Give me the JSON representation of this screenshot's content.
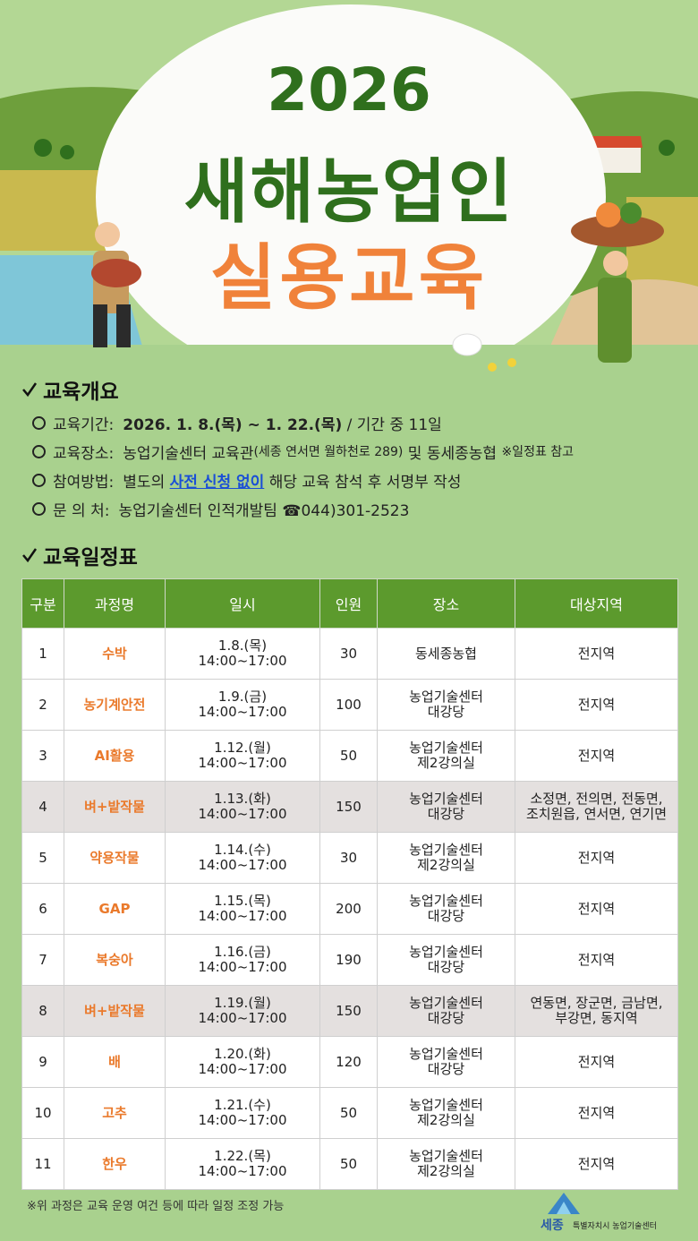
{
  "header": {
    "year": "2026",
    "title_line1": "새해농업인",
    "title_line2": "실용교육"
  },
  "overview": {
    "heading": "교육개요",
    "items": [
      {
        "label": "교육기간:",
        "parts": [
          "2026. 1. 8.(목) ~ 1. 22.(목)",
          " / 기간 중 11일"
        ]
      },
      {
        "label": "교육장소:",
        "parts": [
          "농업기술센터 교육관",
          "(세종 연서면 월하천로 289)",
          " 및 동세종농협 ",
          "※일정표 참고"
        ]
      },
      {
        "label": "참여방법:",
        "parts": [
          "별도의 ",
          "사전 신청 없이",
          " 해당 교육 참석 후 서명부 작성"
        ]
      },
      {
        "label": "문 의 처:",
        "parts": [
          "농업기술센터 인적개발팀 ☎044)301-2523"
        ]
      }
    ]
  },
  "schedule": {
    "heading": "교육일정표",
    "table": {
      "header": [
        "구분",
        "과정명",
        "일시",
        "인원",
        "장소",
        "대상지역"
      ],
      "rows": [
        [
          "1",
          "수박",
          "1.8.(목)\n14:00~17:00",
          "30",
          "동세종농협",
          "전지역"
        ],
        [
          "2",
          "농기계안전",
          "1.9.(금)\n14:00~17:00",
          "100",
          "농업기술센터\n대강당",
          "전지역"
        ],
        [
          "3",
          "AI활용",
          "1.12.(월)\n14:00~17:00",
          "50",
          "농업기술센터\n제2강의실",
          "전지역"
        ],
        [
          "4",
          "벼+밭작물",
          "1.13.(화)\n14:00~17:00",
          "150",
          "농업기술센터\n대강당",
          "소정면, 전의면, 전동면,\n조치원읍, 연서면, 연기면"
        ],
        [
          "5",
          "약용작물",
          "1.14.(수)\n14:00~17:00",
          "30",
          "농업기술센터\n제2강의실",
          "전지역"
        ],
        [
          "6",
          "GAP",
          "1.15.(목)\n14:00~17:00",
          "200",
          "농업기술센터\n대강당",
          "전지역"
        ],
        [
          "7",
          "복숭아",
          "1.16.(금)\n14:00~17:00",
          "190",
          "농업기술센터\n대강당",
          "전지역"
        ],
        [
          "8",
          "벼+밭작물",
          "1.19.(월)\n14:00~17:00",
          "150",
          "농업기술센터\n대강당",
          "연동면, 장군면, 금남면,\n부강면, 동지역"
        ],
        [
          "9",
          "배",
          "1.20.(화)\n14:00~17:00",
          "120",
          "농업기술센터\n대강당",
          "전지역"
        ],
        [
          "10",
          "고추",
          "1.21.(수)\n14:00~17:00",
          "50",
          "농업기술센터\n제2강의실",
          "전지역"
        ],
        [
          "11",
          "한우",
          "1.22.(목)\n14:00~17:00",
          "50",
          "농업기술센터\n제2강의실",
          "전지역"
        ]
      ]
    }
  },
  "footer": {
    "note": "※위 과정은 교육 운영 여건 등에 따라 일정 조정 가능",
    "logo_main": "세종",
    "logo_sub": "특별자치시 농업기술센터"
  }
}
